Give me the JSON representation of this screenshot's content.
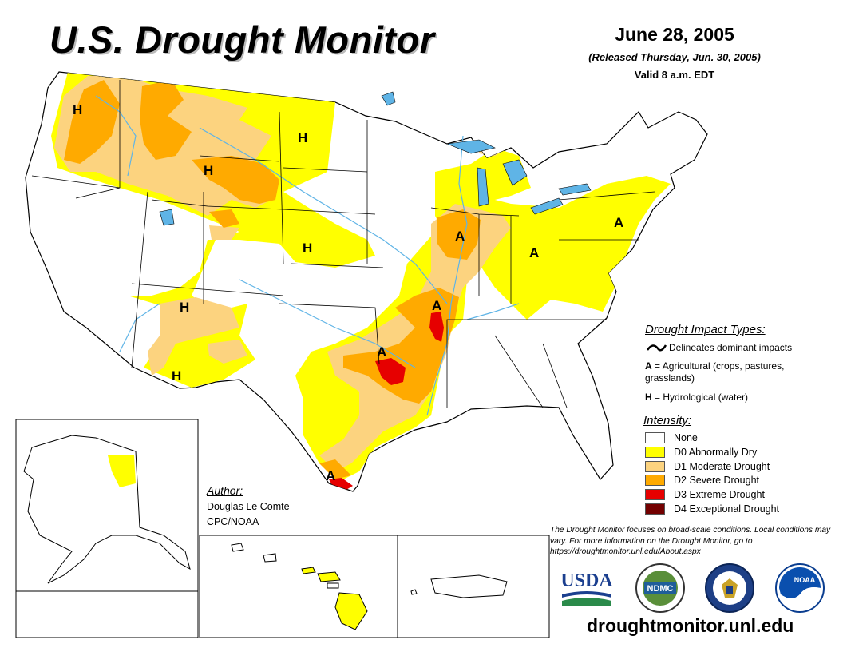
{
  "header": {
    "title": "U.S. Drought Monitor",
    "date": "June 28, 2005",
    "released": "(Released Thursday, Jun. 30, 2005)",
    "valid": "Valid 8 a.m. EDT"
  },
  "impact_legend": {
    "title": "Drought Impact Types:",
    "items": [
      {
        "symbol": "~",
        "text": "Delineates dominant impacts"
      },
      {
        "symbol": "A",
        "text": "= Agricultural (crops, pastures, grasslands)"
      },
      {
        "symbol": "H",
        "text": "= Hydrological (water)"
      }
    ]
  },
  "intensity_legend": {
    "title": "Intensity:",
    "items": [
      {
        "label": "None",
        "color": "#ffffff"
      },
      {
        "label": "D0 Abnormally Dry",
        "color": "#ffff00"
      },
      {
        "label": "D1 Moderate Drought",
        "color": "#fcd37f"
      },
      {
        "label": "D2 Severe Drought",
        "color": "#ffaa00"
      },
      {
        "label": "D3 Extreme Drought",
        "color": "#e60000"
      },
      {
        "label": "D4 Exceptional Drought",
        "color": "#730000"
      }
    ]
  },
  "author": {
    "title": "Author:",
    "name": "Douglas Le Comte",
    "org": "CPC/NOAA"
  },
  "note": "The Drought Monitor focuses on broad-scale conditions. Local conditions may vary. For more information on the Drought Monitor, go to https://droughtmonitor.unl.edu/About.aspx",
  "url": "droughtmonitor.unl.edu",
  "logos": {
    "usda": "USDA",
    "ndmc": "NDMC",
    "noaa": "NOAA"
  },
  "map_labels": {
    "hydrological": "H",
    "agricultural": "A"
  },
  "colors": {
    "water": "#5fb4e6",
    "borders": "#000000"
  }
}
